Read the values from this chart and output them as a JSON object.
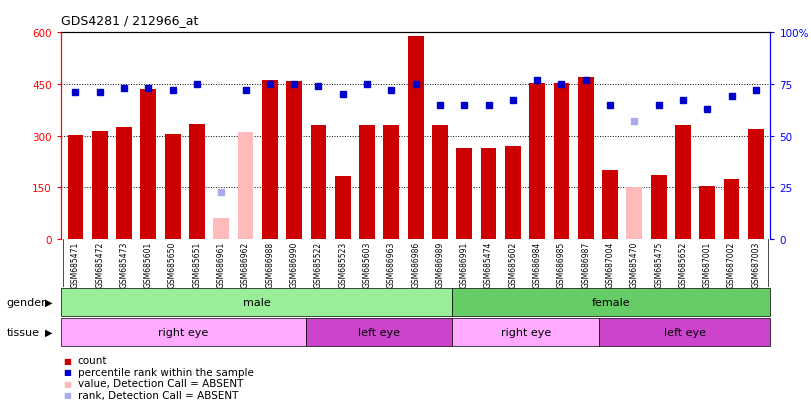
{
  "title": "GDS4281 / 212966_at",
  "samples": [
    "GSM685471",
    "GSM685472",
    "GSM685473",
    "GSM685601",
    "GSM685650",
    "GSM685651",
    "GSM686961",
    "GSM686962",
    "GSM686988",
    "GSM686990",
    "GSM685522",
    "GSM685523",
    "GSM685603",
    "GSM686963",
    "GSM686986",
    "GSM686989",
    "GSM686991",
    "GSM685474",
    "GSM685602",
    "GSM686984",
    "GSM686985",
    "GSM686987",
    "GSM687004",
    "GSM685470",
    "GSM685475",
    "GSM685652",
    "GSM687001",
    "GSM687002",
    "GSM687003"
  ],
  "counts": [
    302,
    312,
    325,
    435,
    305,
    335,
    60,
    310,
    462,
    458,
    330,
    183,
    330,
    330,
    590,
    330,
    265,
    265,
    270,
    453,
    453,
    470,
    200,
    150,
    185,
    330,
    155,
    175,
    320
  ],
  "ranks": [
    71,
    71,
    73,
    73,
    72,
    75,
    23,
    72,
    75,
    75,
    74,
    70,
    75,
    72,
    75,
    65,
    65,
    65,
    67,
    77,
    75,
    77,
    65,
    57,
    65,
    67,
    63,
    69,
    72
  ],
  "absent_value_indices": [
    6,
    7,
    23
  ],
  "absent_rank_indices": [
    6,
    23
  ],
  "gender_groups": [
    {
      "label": "male",
      "start": 0,
      "end": 16,
      "color": "#99ee99"
    },
    {
      "label": "female",
      "start": 16,
      "end": 29,
      "color": "#66cc66"
    }
  ],
  "tissue_groups": [
    {
      "label": "right eye",
      "start": 0,
      "end": 10,
      "color": "#ffaaff"
    },
    {
      "label": "left eye",
      "start": 10,
      "end": 16,
      "color": "#cc44cc"
    },
    {
      "label": "right eye",
      "start": 16,
      "end": 22,
      "color": "#ffaaff"
    },
    {
      "label": "left eye",
      "start": 22,
      "end": 29,
      "color": "#cc44cc"
    }
  ],
  "bar_color_normal": "#cc0000",
  "bar_color_absent": "#ffbbbb",
  "rank_color_normal": "#0000cc",
  "rank_color_absent": "#aaaaee",
  "ylim_left": [
    0,
    600
  ],
  "ylim_right": [
    0,
    100
  ],
  "yticks_left": [
    0,
    150,
    300,
    450,
    600
  ],
  "ytick_labels_left": [
    "0",
    "150",
    "300",
    "450",
    "600"
  ],
  "yticks_right": [
    0,
    25,
    50,
    75,
    100
  ],
  "ytick_labels_right": [
    "0",
    "25",
    "50",
    "75",
    "100%"
  ],
  "bar_width": 0.65
}
